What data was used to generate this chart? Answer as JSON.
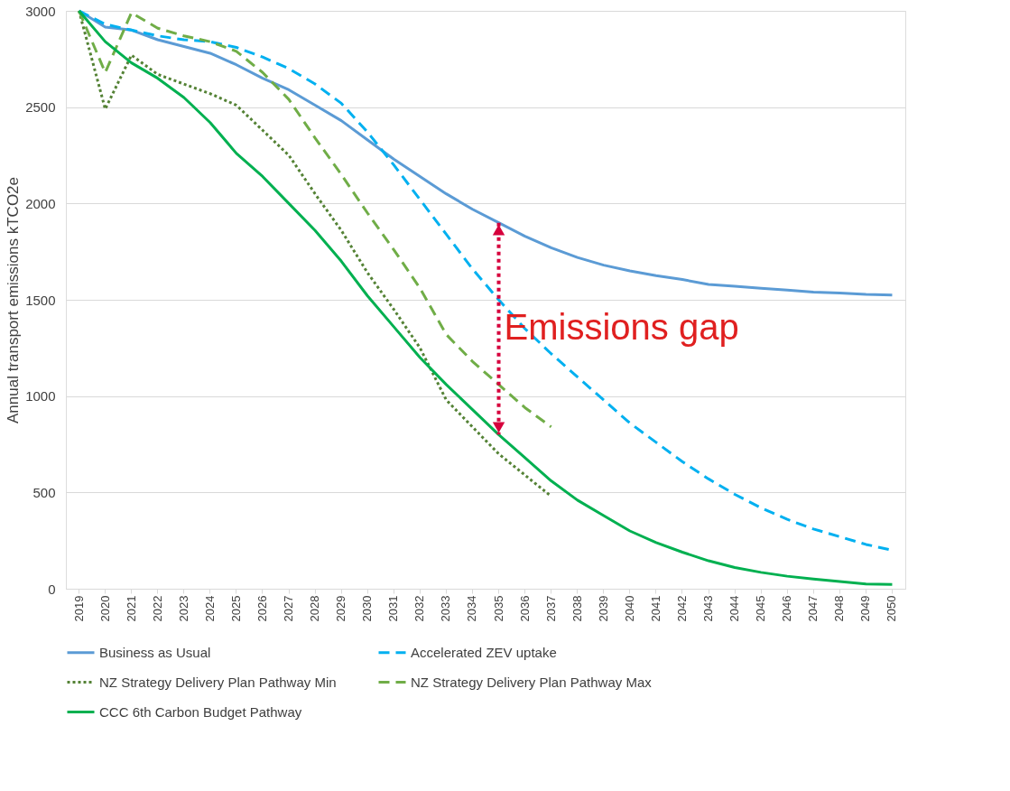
{
  "chart_data": {
    "type": "line",
    "ylabel": "Annual transport emissions kTCO2e",
    "categories": [
      "2019",
      "2020",
      "2021",
      "2022",
      "2023",
      "2024",
      "2025",
      "2026",
      "2027",
      "2028",
      "2029",
      "2030",
      "2031",
      "2032",
      "2033",
      "2034",
      "2035",
      "2036",
      "2037",
      "2038",
      "2039",
      "2040",
      "2041",
      "2042",
      "2043",
      "2044",
      "2045",
      "2046",
      "2047",
      "2048",
      "2049",
      "2050"
    ],
    "series": [
      {
        "name": "Business as Usual",
        "color": "#5b9bd5",
        "line_style": "solid",
        "values": [
          3000,
          2916,
          2900,
          2850,
          2815,
          2780,
          2720,
          2650,
          2590,
          2510,
          2430,
          2330,
          2230,
          2140,
          2050,
          1970,
          1900,
          1830,
          1770,
          1720,
          1680,
          1650,
          1625,
          1605,
          1580,
          1570,
          1560,
          1550,
          1540,
          1535,
          1528,
          1525
        ]
      },
      {
        "name": "Accelerated ZEV uptake",
        "color": "#00b0f0",
        "line_style": "dashed",
        "values": [
          3000,
          2930,
          2900,
          2870,
          2850,
          2840,
          2810,
          2760,
          2700,
          2620,
          2520,
          2370,
          2200,
          2020,
          1840,
          1660,
          1500,
          1350,
          1220,
          1100,
          980,
          860,
          760,
          660,
          570,
          490,
          420,
          360,
          310,
          270,
          230,
          200
        ]
      },
      {
        "name": "NZ Strategy Delivery Plan Pathway Min",
        "color": "#548235",
        "line_style": "dotted",
        "values": [
          3000,
          2490,
          2770,
          2670,
          2620,
          2570,
          2510,
          2380,
          2250,
          2050,
          1860,
          1640,
          1450,
          1250,
          980,
          840,
          700,
          590,
          480,
          null,
          null,
          null,
          null,
          null,
          null,
          null,
          null,
          null,
          null,
          null,
          null,
          null
        ]
      },
      {
        "name": "NZ Strategy Delivery Plan Pathway Max",
        "color": "#70ad47",
        "line_style": "dashed",
        "values": [
          3000,
          2680,
          2990,
          2910,
          2870,
          2840,
          2790,
          2680,
          2540,
          2340,
          2150,
          1950,
          1760,
          1560,
          1320,
          1180,
          1060,
          940,
          840,
          null,
          null,
          null,
          null,
          null,
          null,
          null,
          null,
          null,
          null,
          null,
          null,
          null
        ]
      },
      {
        "name": "CCC 6th Carbon Budget Pathway",
        "color": "#00b050",
        "line_style": "solid",
        "values": [
          3000,
          2840,
          2730,
          2650,
          2550,
          2420,
          2260,
          2140,
          2000,
          1860,
          1700,
          1520,
          1360,
          1200,
          1060,
          930,
          800,
          680,
          560,
          460,
          380,
          300,
          240,
          190,
          145,
          110,
          85,
          65,
          50,
          38,
          25,
          22
        ]
      }
    ],
    "ylim": [
      0,
      3000
    ],
    "yticks": [
      {
        "value": 0,
        "label": "0"
      },
      {
        "value": 500,
        "label": "500"
      },
      {
        "value": 1000,
        "label": "1000"
      },
      {
        "value": 1500,
        "label": "1500"
      },
      {
        "value": 2000,
        "label": "2000"
      },
      {
        "value": 2500,
        "label": "2500"
      },
      {
        "value": 3000,
        "label": "3000"
      }
    ],
    "grid": "y",
    "legend": "bottom",
    "annotations": [
      {
        "text": "Emissions gap",
        "x": "2035",
        "y": 1900
      }
    ]
  }
}
